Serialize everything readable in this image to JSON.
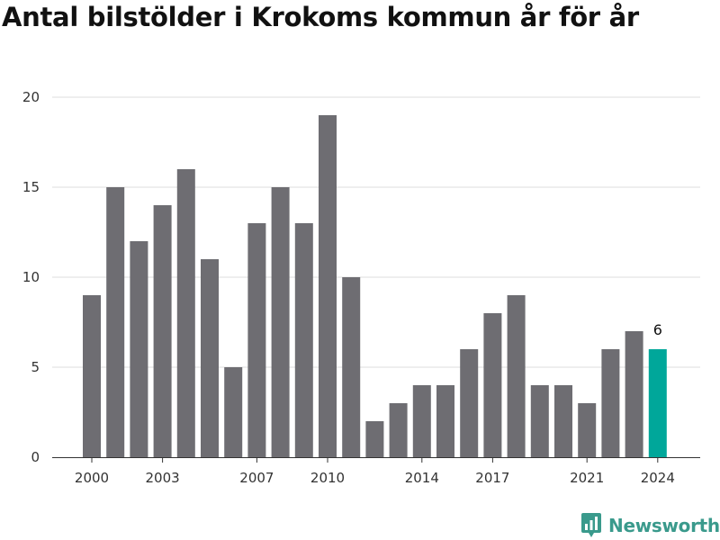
{
  "title": "Antal bilstölder i Krokoms kommun år för år",
  "brand": {
    "name": "Newsworthy",
    "logo_icon": "newsworthy-chart-bubble-icon"
  },
  "chart_data": {
    "type": "bar",
    "title": "Antal bilstölder i Krokoms kommun år för år",
    "xlabel": "",
    "ylabel": "",
    "categories": [
      "2000",
      "2001",
      "2002",
      "2003",
      "2004",
      "2005",
      "2006",
      "2007",
      "2008",
      "2009",
      "2010",
      "2011",
      "2012",
      "2013",
      "2014",
      "2015",
      "2016",
      "2017",
      "2018",
      "2019",
      "2020",
      "2021",
      "2022",
      "2023",
      "2024"
    ],
    "values": [
      9,
      15,
      12,
      14,
      16,
      11,
      5,
      13,
      15,
      13,
      19,
      10,
      2,
      3,
      4,
      4,
      6,
      8,
      9,
      4,
      4,
      3,
      6,
      7,
      6
    ],
    "x_tick_labels": [
      "2000",
      "2003",
      "2007",
      "2010",
      "2014",
      "2017",
      "2021",
      "2024"
    ],
    "y_ticks": [
      0,
      5,
      10,
      15,
      20
    ],
    "ylim": [
      0,
      20
    ],
    "grid": true,
    "legend": "none",
    "highlight_index": 24,
    "data_labels": [
      {
        "category": "2024",
        "text": "6"
      }
    ],
    "colors": {
      "bar": "#6e6d72",
      "highlight": "#00a79a",
      "grid": "#dddddd",
      "axis": "#333333"
    }
  }
}
